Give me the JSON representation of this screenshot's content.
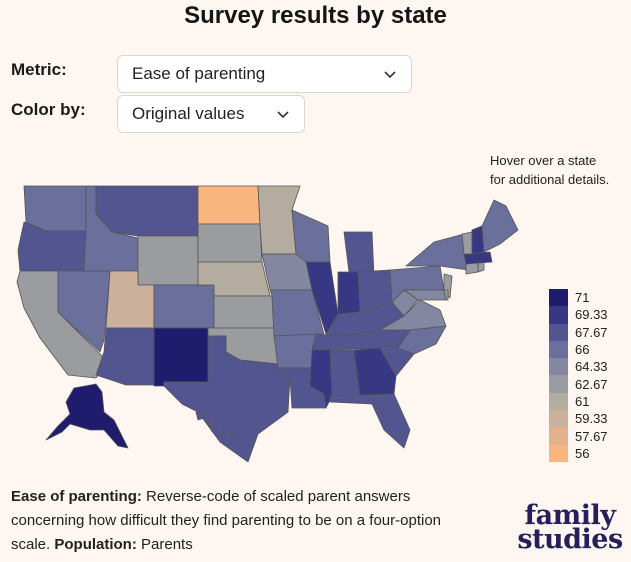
{
  "title": "Survey results by state",
  "controls": {
    "metric_label": "Metric:",
    "metric_value": "Ease of parenting",
    "color_label": "Color by:",
    "color_value": "Original values"
  },
  "hint": [
    "Hover over a state",
    "for additional details."
  ],
  "legend": [
    {
      "label": "71",
      "color": "#1f1c6e"
    },
    {
      "label": "69.33",
      "color": "#383784"
    },
    {
      "label": "67.67",
      "color": "#535590"
    },
    {
      "label": "66",
      "color": "#6b6f9b"
    },
    {
      "label": "64.33",
      "color": "#83879f"
    },
    {
      "label": "62.67",
      "color": "#9a9c9f"
    },
    {
      "label": "61",
      "color": "#b4ac9f"
    },
    {
      "label": "59.33",
      "color": "#cbb09c"
    },
    {
      "label": "57.67",
      "color": "#e1b18d"
    },
    {
      "label": "56",
      "color": "#f8b57e"
    }
  ],
  "description": {
    "metric_name": "Ease of parenting:",
    "metric_text": "Reverse-code of scaled parent answers concerning how difficult they find parenting to be on a four-option scale.",
    "population_label": "Population:",
    "population_value": "Parents"
  },
  "logo": [
    "family",
    "studies"
  ]
}
